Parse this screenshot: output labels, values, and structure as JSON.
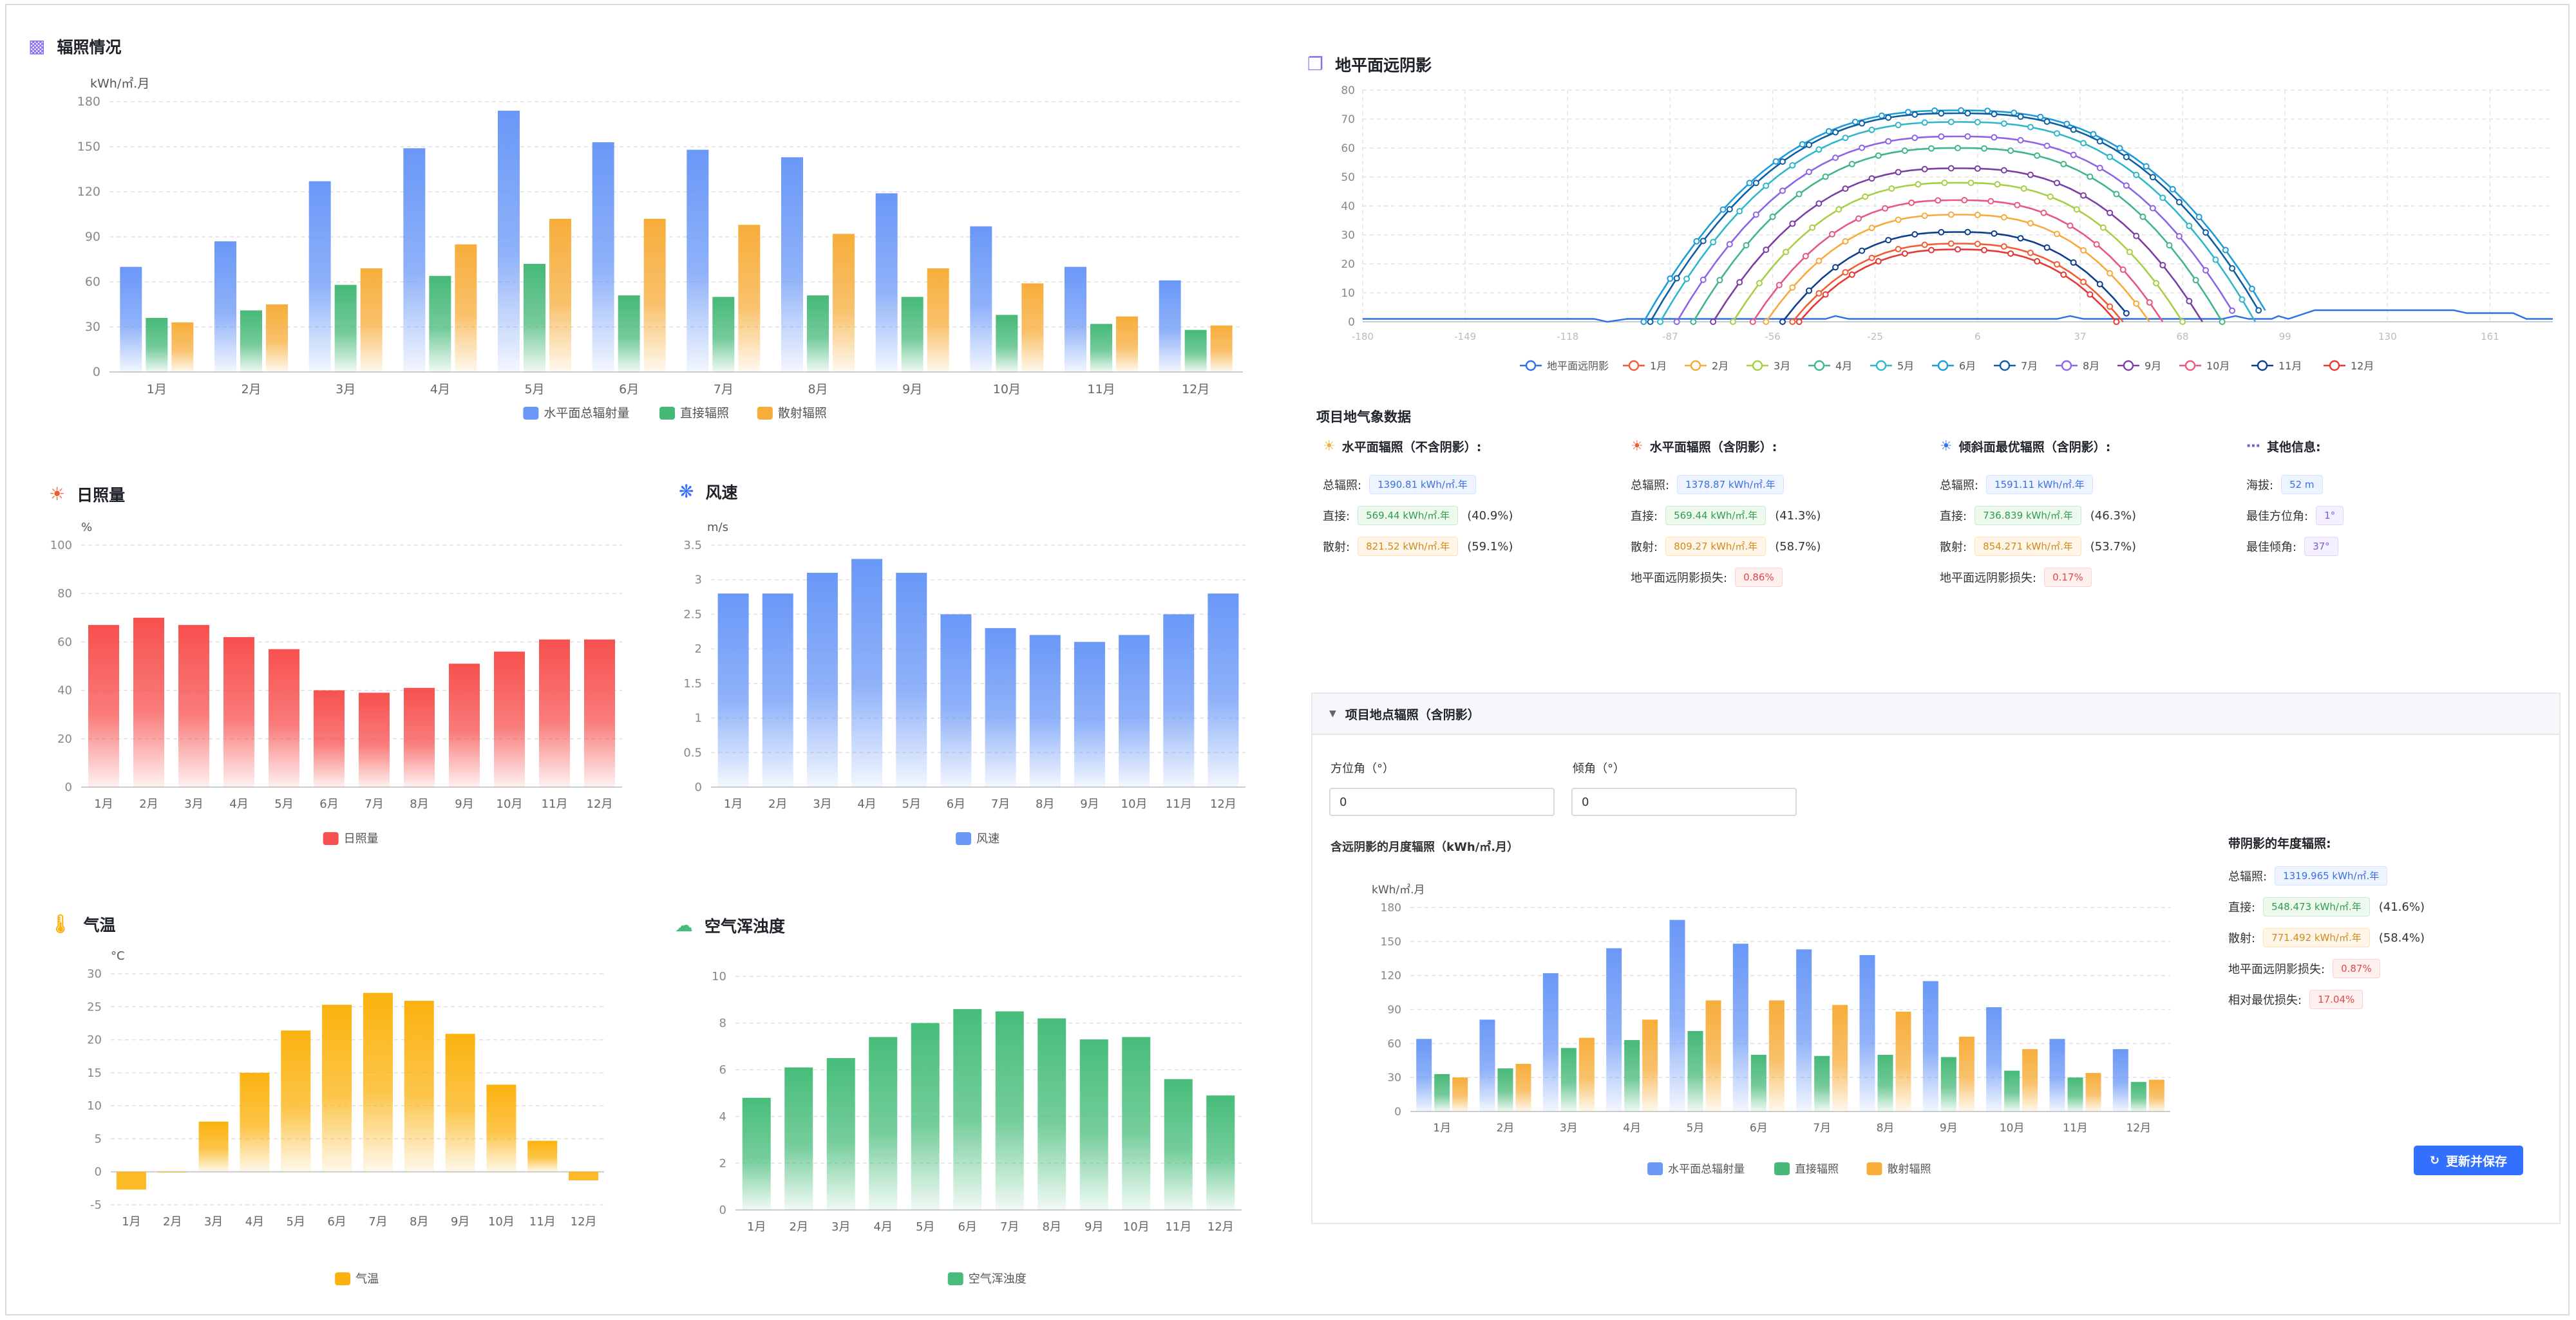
{
  "months": [
    "1月",
    "2月",
    "3月",
    "4月",
    "5月",
    "6月",
    "7月",
    "8月",
    "9月",
    "10月",
    "11月",
    "12月"
  ],
  "colors": {
    "blue": "#6a98f7",
    "green": "#46b978",
    "orange": "#f7ad3a",
    "red": "#f7504e",
    "amber": "#fbb20e",
    "teal": "#47bd7a",
    "accent": "#3370ff"
  },
  "radiation_panel": {
    "title": "辐照情况",
    "icon": "bar-chart-icon",
    "unit": "kWh/㎡.月"
  },
  "sunshine_panel": {
    "title": "日照量",
    "icon": "sun-icon",
    "unit": "%"
  },
  "wind_panel": {
    "title": "风速",
    "icon": "fan-icon",
    "unit": "m/s"
  },
  "temp_panel": {
    "title": "气温",
    "icon": "thermometer-icon",
    "unit": "°C"
  },
  "aerosol_panel": {
    "title": "空气浑浊度",
    "icon": "cloud-icon",
    "unit": ""
  },
  "horizon_panel": {
    "title": "地平面远阴影",
    "icon": "cube-icon"
  },
  "chart_data": [
    {
      "id": "radiation",
      "type": "bar",
      "categories": [
        "1月",
        "2月",
        "3月",
        "4月",
        "5月",
        "6月",
        "7月",
        "8月",
        "9月",
        "10月",
        "11月",
        "12月"
      ],
      "series": [
        {
          "name": "水平面总辐射量",
          "values": [
            70,
            87,
            127,
            149,
            174,
            153,
            148,
            143,
            119,
            97,
            70,
            61
          ]
        },
        {
          "name": "直接辐照",
          "values": [
            36,
            41,
            58,
            64,
            72,
            51,
            50,
            51,
            50,
            38,
            32,
            28
          ]
        },
        {
          "name": "散射辐照",
          "values": [
            33,
            45,
            69,
            85,
            102,
            102,
            98,
            92,
            69,
            59,
            37,
            31
          ]
        }
      ],
      "ylabel": "kWh/㎡.月",
      "ylim": [
        0,
        180
      ],
      "yticks": [
        0,
        30,
        60,
        90,
        120,
        150,
        180
      ],
      "grid": true,
      "legend": "bottom-center"
    },
    {
      "id": "sunshine",
      "type": "bar",
      "categories": [
        "1月",
        "2月",
        "3月",
        "4月",
        "5月",
        "6月",
        "7月",
        "8月",
        "9月",
        "10月",
        "11月",
        "12月"
      ],
      "series": [
        {
          "name": "日照量",
          "values": [
            67,
            70,
            67,
            62,
            57,
            40,
            39,
            41,
            51,
            56,
            61,
            61
          ]
        }
      ],
      "ylabel": "%",
      "ylim": [
        0,
        100
      ],
      "yticks": [
        0,
        20,
        40,
        60,
        80,
        100
      ],
      "grid": true,
      "legend": "bottom-center"
    },
    {
      "id": "wind",
      "type": "bar",
      "categories": [
        "1月",
        "2月",
        "3月",
        "4月",
        "5月",
        "6月",
        "7月",
        "8月",
        "9月",
        "10月",
        "11月",
        "12月"
      ],
      "series": [
        {
          "name": "风速",
          "values": [
            2.8,
            2.8,
            3.1,
            3.3,
            3.1,
            2.5,
            2.3,
            2.2,
            2.1,
            2.2,
            2.5,
            2.8
          ]
        }
      ],
      "ylabel": "m/s",
      "ylim": [
        0,
        3.5
      ],
      "yticks": [
        0,
        0.5,
        1,
        1.5,
        2,
        2.5,
        3,
        3.5
      ],
      "grid": true,
      "legend": "bottom-center"
    },
    {
      "id": "temperature",
      "type": "bar",
      "categories": [
        "1月",
        "2月",
        "3月",
        "4月",
        "5月",
        "6月",
        "7月",
        "8月",
        "9月",
        "10月",
        "11月",
        "12月"
      ],
      "series": [
        {
          "name": "气温",
          "values": [
            -2.7,
            -0.1,
            7.6,
            15,
            21.4,
            25.3,
            27.1,
            25.9,
            20.9,
            13.2,
            4.7,
            -1.3
          ]
        }
      ],
      "ylabel": "°C",
      "ylim": [
        -5,
        30
      ],
      "yticks": [
        -5,
        0,
        5,
        10,
        15,
        20,
        25,
        30
      ],
      "grid": true,
      "legend": "bottom-center"
    },
    {
      "id": "aerosol",
      "type": "bar",
      "categories": [
        "1月",
        "2月",
        "3月",
        "4月",
        "5月",
        "6月",
        "7月",
        "8月",
        "9月",
        "10月",
        "11月",
        "12月"
      ],
      "series": [
        {
          "name": "空气浑浊度",
          "values": [
            4.8,
            6.1,
            6.5,
            7.4,
            8,
            8.6,
            8.5,
            8.2,
            7.3,
            7.4,
            5.6,
            4.9
          ]
        }
      ],
      "ylim": [
        0,
        10
      ],
      "yticks": [
        0,
        2,
        4,
        6,
        8,
        10
      ],
      "grid": true,
      "legend": "bottom-center"
    },
    {
      "id": "horizon",
      "type": "line",
      "xlim": [
        -180,
        180
      ],
      "xticks": [
        -180,
        -149,
        -118,
        -87,
        -56,
        -25,
        6,
        37,
        68,
        99,
        130,
        161
      ],
      "ylim": [
        0,
        80
      ],
      "yticks": [
        0,
        10,
        20,
        30,
        40,
        50,
        60,
        70,
        80
      ],
      "grid": true,
      "legend": "bottom-center",
      "series": [
        {
          "name": "地平面远阴影",
          "color": "#2e6ee6",
          "kind": "horizon",
          "values": [
            [
              -180,
              1
            ],
            [
              -130,
              1
            ],
            [
              -126,
              1
            ],
            [
              -110,
              1
            ],
            [
              -106,
              0
            ],
            [
              -100,
              1
            ],
            [
              -40,
              1
            ],
            [
              -37,
              2
            ],
            [
              -33,
              1
            ],
            [
              30,
              1
            ],
            [
              34,
              2
            ],
            [
              38,
              1
            ],
            [
              80,
              1
            ],
            [
              84,
              2
            ],
            [
              88,
              1
            ],
            [
              95,
              1
            ],
            [
              97,
              2
            ],
            [
              100,
              1
            ],
            [
              108,
              4
            ],
            [
              150,
              4
            ],
            [
              154,
              3
            ],
            [
              168,
              3
            ],
            [
              172,
              1
            ],
            [
              180,
              1
            ]
          ]
        },
        {
          "name": "1月",
          "color": "#f25c33",
          "peak": 27,
          "half": 50
        },
        {
          "name": "2月",
          "color": "#f8a93b",
          "peak": 37,
          "half": 58
        },
        {
          "name": "3月",
          "color": "#a5cf45",
          "peak": 48,
          "half": 68
        },
        {
          "name": "4月",
          "color": "#40b58a",
          "peak": 60,
          "half": 80
        },
        {
          "name": "5月",
          "color": "#2fb7c9",
          "peak": 69,
          "half": 90
        },
        {
          "name": "6月",
          "color": "#1d9bd7",
          "peak": 73,
          "half": 95
        },
        {
          "name": "7月",
          "color": "#0c5da6",
          "peak": 72,
          "half": 93
        },
        {
          "name": "8月",
          "color": "#8d63e8",
          "peak": 64,
          "half": 85
        },
        {
          "name": "9月",
          "color": "#7b3da6",
          "peak": 53,
          "half": 74
        },
        {
          "name": "10月",
          "color": "#e8577e",
          "peak": 42,
          "half": 62
        },
        {
          "name": "11月",
          "color": "#0d3e8f",
          "peak": 31,
          "half": 53
        },
        {
          "name": "12月",
          "color": "#e53935",
          "peak": 25,
          "half": 48
        }
      ]
    },
    {
      "id": "monthly_with_shade",
      "type": "bar",
      "categories": [
        "1月",
        "2月",
        "3月",
        "4月",
        "5月",
        "6月",
        "7月",
        "8月",
        "9月",
        "10月",
        "11月",
        "12月"
      ],
      "series": [
        {
          "name": "水平面总辐射量",
          "values": [
            64,
            81,
            122,
            144,
            169,
            148,
            143,
            138,
            115,
            92,
            64,
            55
          ]
        },
        {
          "name": "直接辐照",
          "values": [
            33,
            38,
            56,
            63,
            71,
            50,
            49,
            50,
            48,
            36,
            30,
            26
          ]
        },
        {
          "name": "散射辐照",
          "values": [
            30,
            42,
            65,
            81,
            98,
            98,
            94,
            88,
            66,
            55,
            34,
            28
          ]
        }
      ],
      "ylabel": "kWh/㎡.月",
      "ylim": [
        0,
        180
      ],
      "yticks": [
        0,
        30,
        60,
        90,
        120,
        150,
        180
      ],
      "grid": true,
      "legend": "bottom-center"
    }
  ],
  "weather": {
    "title": "项目地气象数据",
    "groups": [
      {
        "title": "水平面辐照（不含阴影）:",
        "icon": "sun-outline-icon",
        "color": "#f7ad3a",
        "rows": [
          {
            "label": "总辐照:",
            "value": "1390.81 kWh/㎡.年",
            "tone": "blue",
            "pct": ""
          },
          {
            "label": "直接:",
            "value": "569.44 kWh/㎡.年",
            "tone": "green",
            "pct": "(40.9%)"
          },
          {
            "label": "散射:",
            "value": "821.52 kWh/㎡.年",
            "tone": "orange",
            "pct": "(59.1%)"
          }
        ]
      },
      {
        "title": "水平面辐照（含阴影）:",
        "icon": "sun-shade-icon",
        "color": "#f25c33",
        "rows": [
          {
            "label": "总辐照:",
            "value": "1378.87 kWh/㎡.年",
            "tone": "blue",
            "pct": ""
          },
          {
            "label": "直接:",
            "value": "569.44 kWh/㎡.年",
            "tone": "green",
            "pct": "(41.3%)"
          },
          {
            "label": "散射:",
            "value": "809.27 kWh/㎡.年",
            "tone": "orange",
            "pct": "(58.7%)"
          },
          {
            "label": "地平面远阴影损失:",
            "value": "0.86%",
            "tone": "red",
            "pct": ""
          }
        ]
      },
      {
        "title": "倾斜面最优辐照（含阴影）:",
        "icon": "sun-tilt-icon",
        "color": "#3370ff",
        "rows": [
          {
            "label": "总辐照:",
            "value": "1591.11 kWh/㎡.年",
            "tone": "blue",
            "pct": ""
          },
          {
            "label": "直接:",
            "value": "736.839 kWh/㎡.年",
            "tone": "green",
            "pct": "(46.3%)"
          },
          {
            "label": "散射:",
            "value": "854.271 kWh/㎡.年",
            "tone": "orange",
            "pct": "(53.7%)"
          },
          {
            "label": "地平面远阴影损失:",
            "value": "0.17%",
            "tone": "red",
            "pct": ""
          }
        ]
      },
      {
        "title": "其他信息:",
        "icon": "more-icon",
        "color": "#7a5cd6",
        "rows": [
          {
            "label": "海拔:",
            "value": "52 m",
            "tone": "blue",
            "pct": ""
          },
          {
            "label": "最佳方位角:",
            "value": "1°",
            "tone": "purple",
            "pct": ""
          },
          {
            "label": "最佳倾角:",
            "value": "37°",
            "tone": "purple",
            "pct": ""
          }
        ]
      }
    ]
  },
  "site": {
    "header": "项目地点辐照（含阴影）",
    "azimuth_label": "方位角（°）",
    "azimuth_value": "0",
    "tilt_label": "倾角（°）",
    "tilt_value": "0",
    "chart_title": "含远阴影的月度辐照（kWh/㎡.月）",
    "annual_title": "带阴影的年度辐照:",
    "annual_rows": [
      {
        "label": "总辐照:",
        "value": "1319.965 kWh/㎡.年",
        "tone": "blue",
        "pct": ""
      },
      {
        "label": "直接:",
        "value": "548.473 kWh/㎡.年",
        "tone": "green",
        "pct": "(41.6%)"
      },
      {
        "label": "散射:",
        "value": "771.492 kWh/㎡.年",
        "tone": "orange",
        "pct": "(58.4%)"
      },
      {
        "label": "地平面远阴影损失:",
        "value": "0.87%",
        "tone": "red",
        "pct": ""
      },
      {
        "label": "相对最优损失:",
        "value": "17.04%",
        "tone": "red",
        "pct": ""
      }
    ],
    "save_button": "更新并保存",
    "save_icon": "refresh-icon"
  }
}
